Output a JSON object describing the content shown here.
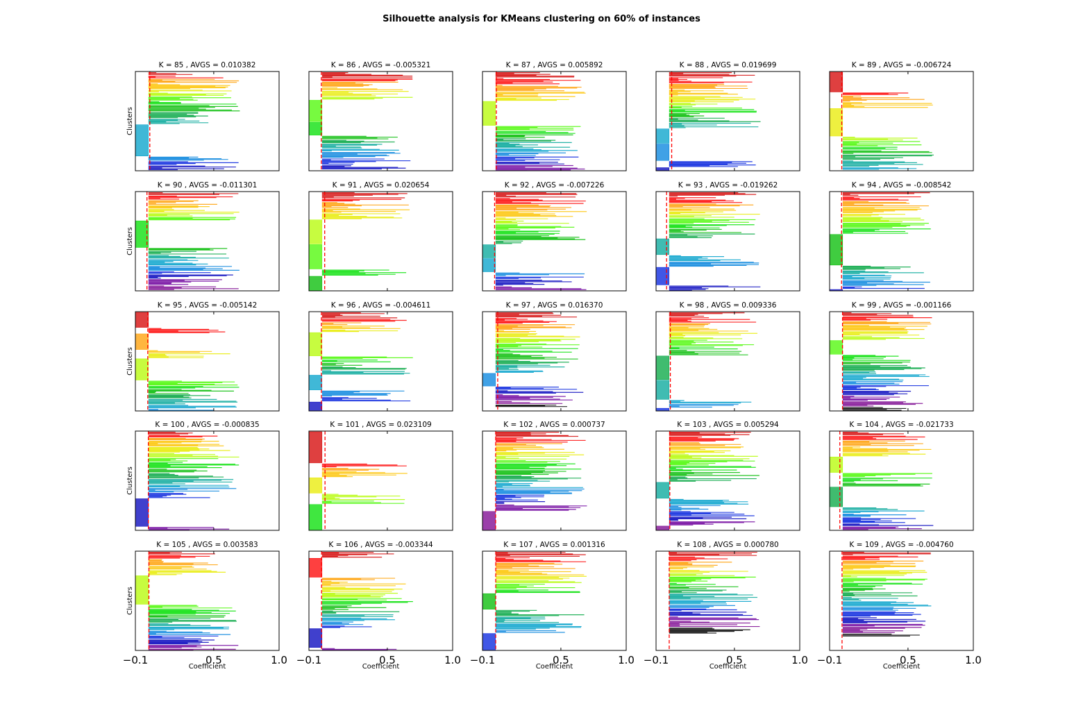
{
  "figure_title": "Silhouette analysis for KMeans clustering on 60% of instances",
  "chart_data": {
    "type": "silhouette",
    "xlim": [
      -0.1,
      1.0
    ],
    "xticks": [
      -0.1,
      0.5,
      1.0
    ],
    "xtick_labels": [
      "−0.1",
      "0.5",
      "1.0"
    ],
    "xlabel": "Coefficient",
    "ylabel": "Clusters",
    "grid": false,
    "avg_line_color": "#ff0000",
    "panels": [
      {
        "k": 85,
        "avgs": 0.010382,
        "title": "K = 85 , AVGS = 0.010382"
      },
      {
        "k": 86,
        "avgs": -0.005321,
        "title": "K = 86 , AVGS = -0.005321"
      },
      {
        "k": 87,
        "avgs": 0.005892,
        "title": "K = 87 , AVGS = 0.005892"
      },
      {
        "k": 88,
        "avgs": 0.019699,
        "title": "K = 88 , AVGS = 0.019699"
      },
      {
        "k": 89,
        "avgs": -0.006724,
        "title": "K = 89 , AVGS = -0.006724"
      },
      {
        "k": 90,
        "avgs": -0.011301,
        "title": "K = 90 , AVGS = -0.011301"
      },
      {
        "k": 91,
        "avgs": 0.020654,
        "title": "K = 91 , AVGS = 0.020654"
      },
      {
        "k": 92,
        "avgs": -0.007226,
        "title": "K = 92 , AVGS = -0.007226"
      },
      {
        "k": 93,
        "avgs": -0.019262,
        "title": "K = 93 , AVGS = -0.019262"
      },
      {
        "k": 94,
        "avgs": -0.008542,
        "title": "K = 94 , AVGS = -0.008542"
      },
      {
        "k": 95,
        "avgs": -0.005142,
        "title": "K = 95 , AVGS = -0.005142"
      },
      {
        "k": 96,
        "avgs": -0.004611,
        "title": "K = 96 , AVGS = -0.004611"
      },
      {
        "k": 97,
        "avgs": 0.01637,
        "title": "K = 97 , AVGS = 0.016370"
      },
      {
        "k": 98,
        "avgs": 0.009336,
        "title": "K = 98 , AVGS = 0.009336"
      },
      {
        "k": 99,
        "avgs": -0.001166,
        "title": "K = 99 , AVGS = -0.001166"
      },
      {
        "k": 100,
        "avgs": -0.000835,
        "title": "K = 100 , AVGS = -0.000835"
      },
      {
        "k": 101,
        "avgs": 0.023109,
        "title": "K = 101 , AVGS = 0.023109"
      },
      {
        "k": 102,
        "avgs": 0.000737,
        "title": "K = 102 , AVGS = 0.000737"
      },
      {
        "k": 103,
        "avgs": 0.005294,
        "title": "K = 103 , AVGS = 0.005294"
      },
      {
        "k": 104,
        "avgs": -0.021733,
        "title": "K = 104 , AVGS = -0.021733"
      },
      {
        "k": 105,
        "avgs": 0.003583,
        "title": "K = 105 , AVGS = 0.003583"
      },
      {
        "k": 106,
        "avgs": -0.003344,
        "title": "K = 106 , AVGS = -0.003344"
      },
      {
        "k": 107,
        "avgs": 0.001316,
        "title": "K = 107 , AVGS = 0.001316"
      },
      {
        "k": 108,
        "avgs": 0.00078,
        "title": "K = 108 , AVGS = 0.000780"
      },
      {
        "k": 109,
        "avgs": -0.00476,
        "title": "K = 109 , AVGS = -0.004760"
      }
    ]
  }
}
